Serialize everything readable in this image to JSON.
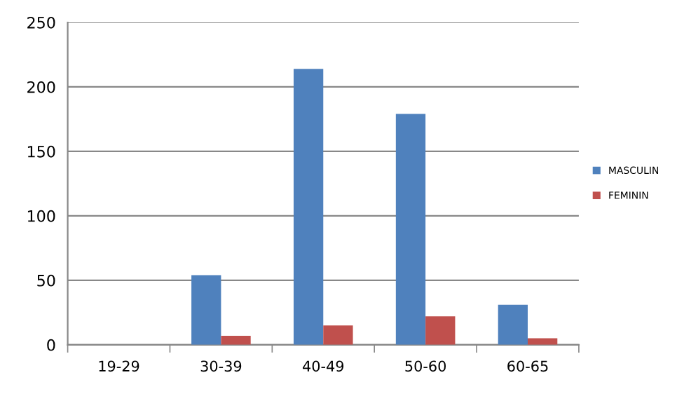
{
  "chart_data": {
    "type": "bar",
    "categories": [
      "19-29",
      "30-39",
      "40-49",
      "50-60",
      "60-65"
    ],
    "series": [
      {
        "name": "MASCULIN",
        "color": "#4f81bd",
        "values": [
          0,
          54,
          214,
          179,
          31
        ]
      },
      {
        "name": "FEMININ",
        "color": "#c0504d",
        "values": [
          0,
          7,
          15,
          22,
          5
        ]
      }
    ],
    "ylim": [
      0,
      250
    ],
    "yticks": [
      0,
      50,
      100,
      150,
      200,
      250
    ],
    "grid": "y",
    "legend": "right"
  }
}
